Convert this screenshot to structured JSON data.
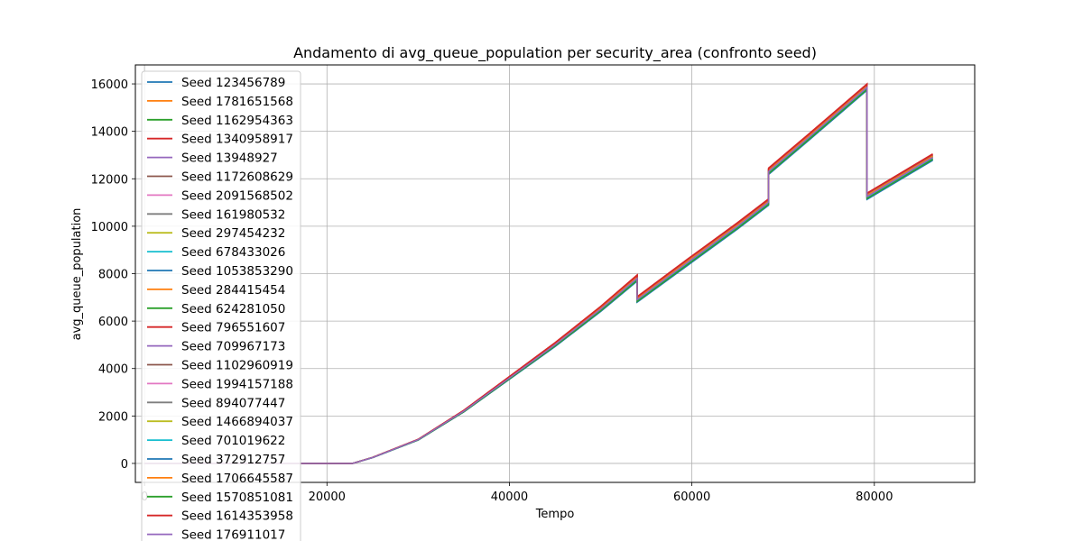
{
  "chart_data": {
    "type": "line",
    "title": "Andamento di avg_queue_population per security_area (confronto seed)",
    "xlabel": "Tempo",
    "ylabel": "avg_queue_population",
    "xlim": [
      -1000,
      91000
    ],
    "ylim": [
      -800,
      16800
    ],
    "x_ticks": [
      0,
      20000,
      40000,
      60000,
      80000
    ],
    "y_ticks": [
      0,
      2000,
      4000,
      6000,
      8000,
      10000,
      12000,
      14000,
      16000
    ],
    "x_tick_labels": [
      "0",
      "20000",
      "40000",
      "60000",
      "80000"
    ],
    "y_tick_labels": [
      "0",
      "2000",
      "4000",
      "6000",
      "8000",
      "10000",
      "12000",
      "14000",
      "16000"
    ],
    "grid": true,
    "legend_position": "top-left",
    "x": [
      0,
      10000,
      22800,
      25000,
      30000,
      35000,
      40000,
      45000,
      50000,
      54000,
      54001,
      60000,
      65000,
      68400,
      68401,
      73000,
      79200,
      79201,
      86400
    ],
    "base": [
      0,
      0,
      0,
      250,
      1000,
      2200,
      3600,
      5000,
      6500,
      7800,
      6900,
      8600,
      10000,
      11000,
      12300,
      13800,
      15850,
      11250,
      12900
    ],
    "series": [
      {
        "name": "Seed 123456789",
        "color": "#1f77b4",
        "offset": -120
      },
      {
        "name": "Seed 1781651568",
        "color": "#ff7f0e",
        "offset": -40
      },
      {
        "name": "Seed 1162954363",
        "color": "#2ca02c",
        "offset": 10
      },
      {
        "name": "Seed 1340958917",
        "color": "#d62728",
        "offset": 150
      },
      {
        "name": "Seed 13948927",
        "color": "#9467bd",
        "offset": -70
      },
      {
        "name": "Seed 1172608629",
        "color": "#8c564b",
        "offset": 60
      },
      {
        "name": "Seed 2091568502",
        "color": "#e377c2",
        "offset": 0
      },
      {
        "name": "Seed 161980532",
        "color": "#7f7f7f",
        "offset": 40
      },
      {
        "name": "Seed 297454232",
        "color": "#bcbd22",
        "offset": -20
      },
      {
        "name": "Seed 678433026",
        "color": "#17becf",
        "offset": 20
      },
      {
        "name": "Seed 1053853290",
        "color": "#1f77b4",
        "offset": -90
      },
      {
        "name": "Seed 284415454",
        "color": "#ff7f0e",
        "offset": 80
      },
      {
        "name": "Seed 624281050",
        "color": "#2ca02c",
        "offset": -50
      },
      {
        "name": "Seed 796551607",
        "color": "#d62728",
        "offset": 110
      },
      {
        "name": "Seed 709967173",
        "color": "#9467bd",
        "offset": -10
      },
      {
        "name": "Seed 1102960919",
        "color": "#8c564b",
        "offset": 90
      },
      {
        "name": "Seed 1994157188",
        "color": "#e377c2",
        "offset": -30
      },
      {
        "name": "Seed 894077447",
        "color": "#7f7f7f",
        "offset": 70
      },
      {
        "name": "Seed 1466894037",
        "color": "#bcbd22",
        "offset": 30
      },
      {
        "name": "Seed 701019622",
        "color": "#17becf",
        "offset": -60
      },
      {
        "name": "Seed 372912757",
        "color": "#1f77b4",
        "offset": -100
      },
      {
        "name": "Seed 1706645587",
        "color": "#ff7f0e",
        "offset": 50
      },
      {
        "name": "Seed 1570851081",
        "color": "#2ca02c",
        "offset": -80
      },
      {
        "name": "Seed 1614353958",
        "color": "#d62728",
        "offset": 130
      },
      {
        "name": "Seed 176911017",
        "color": "#9467bd",
        "offset": 5
      }
    ]
  }
}
